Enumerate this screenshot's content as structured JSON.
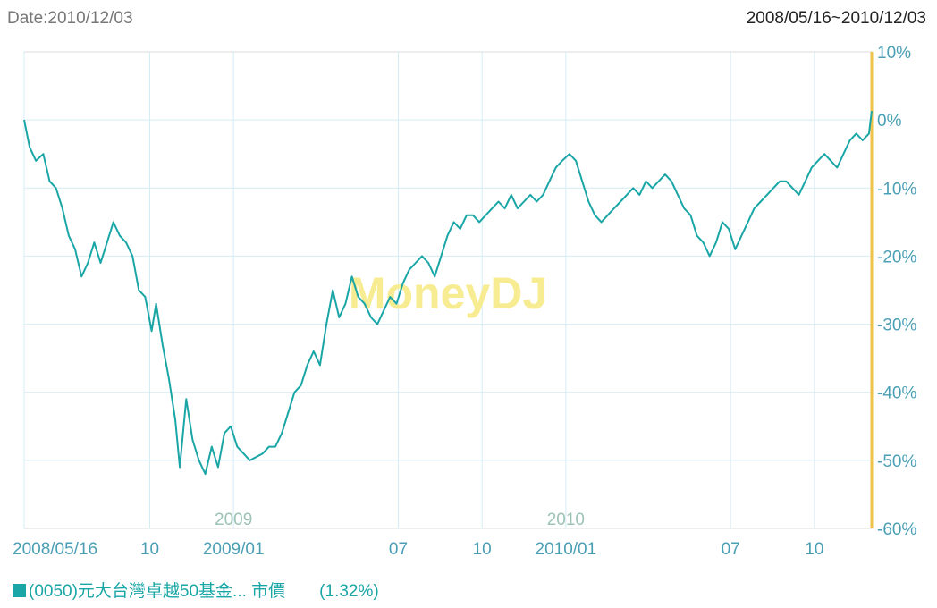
{
  "header": {
    "date_label": "Date:2010/12/03",
    "range_label": "2008/05/16~2010/12/03"
  },
  "watermark": "MoneyDJ",
  "legend": {
    "series_label": "(0050)元大台灣卓越50基金... 市價",
    "value_label": "(1.32%)"
  },
  "colors": {
    "line": "#1aa6a6",
    "axis_text": "#4b9fb5",
    "grid": "#d4ecf4",
    "year_label": "#9cc3b4",
    "watermark": "#f7ec92",
    "right_axis": "#f0c24a"
  },
  "chart_data": {
    "type": "line",
    "title": "",
    "ylabel": "",
    "ylim": [
      -60,
      10
    ],
    "y_ticks": [
      "10%",
      "0%",
      "-10%",
      "-20%",
      "-30%",
      "-40%",
      "-50%",
      "-60%"
    ],
    "x_range": [
      "2008/05/16",
      "2010/12/03"
    ],
    "x_ticks": [
      {
        "date": "2008/05/16",
        "label": "2008/05/16"
      },
      {
        "date": "2008/10/01",
        "label": "10"
      },
      {
        "date": "2009/01/01",
        "label": "2009/01"
      },
      {
        "date": "2009/07/01",
        "label": "07"
      },
      {
        "date": "2009/10/01",
        "label": "10"
      },
      {
        "date": "2010/01/01",
        "label": "2010/01"
      },
      {
        "date": "2010/07/01",
        "label": "07"
      },
      {
        "date": "2010/10/01",
        "label": "10"
      }
    ],
    "year_labels": [
      {
        "date": "2009/01/01",
        "label": "2009"
      },
      {
        "date": "2010/01/01",
        "label": "2010"
      }
    ],
    "grid": true,
    "series": [
      {
        "name": "(0050)元大台灣卓越50基金... 市價",
        "points": [
          [
            "2008/05/16",
            0
          ],
          [
            "2008/05/22",
            -4
          ],
          [
            "2008/05/29",
            -6
          ],
          [
            "2008/06/06",
            -5
          ],
          [
            "2008/06/13",
            -9
          ],
          [
            "2008/06/20",
            -10
          ],
          [
            "2008/06/27",
            -13
          ],
          [
            "2008/07/04",
            -17
          ],
          [
            "2008/07/11",
            -19
          ],
          [
            "2008/07/18",
            -23
          ],
          [
            "2008/07/25",
            -21
          ],
          [
            "2008/08/01",
            -18
          ],
          [
            "2008/08/08",
            -21
          ],
          [
            "2008/08/15",
            -18
          ],
          [
            "2008/08/22",
            -15
          ],
          [
            "2008/08/29",
            -17
          ],
          [
            "2008/09/05",
            -18
          ],
          [
            "2008/09/12",
            -20
          ],
          [
            "2008/09/19",
            -25
          ],
          [
            "2008/09/26",
            -26
          ],
          [
            "2008/10/03",
            -31
          ],
          [
            "2008/10/08",
            -27
          ],
          [
            "2008/10/15",
            -33
          ],
          [
            "2008/10/22",
            -38
          ],
          [
            "2008/10/29",
            -44
          ],
          [
            "2008/11/03",
            -51
          ],
          [
            "2008/11/10",
            -41
          ],
          [
            "2008/11/17",
            -47
          ],
          [
            "2008/11/24",
            -50
          ],
          [
            "2008/12/01",
            -52
          ],
          [
            "2008/12/08",
            -48
          ],
          [
            "2008/12/15",
            -51
          ],
          [
            "2008/12/22",
            -46
          ],
          [
            "2008/12/29",
            -45
          ],
          [
            "2009/01/05",
            -48
          ],
          [
            "2009/01/12",
            -49
          ],
          [
            "2009/01/19",
            -50
          ],
          [
            "2009/02/02",
            -49
          ],
          [
            "2009/02/09",
            -48
          ],
          [
            "2009/02/16",
            -48
          ],
          [
            "2009/02/23",
            -46
          ],
          [
            "2009/03/02",
            -43
          ],
          [
            "2009/03/09",
            -40
          ],
          [
            "2009/03/16",
            -39
          ],
          [
            "2009/03/23",
            -36
          ],
          [
            "2009/03/30",
            -34
          ],
          [
            "2009/04/06",
            -36
          ],
          [
            "2009/04/13",
            -30
          ],
          [
            "2009/04/20",
            -25
          ],
          [
            "2009/04/27",
            -29
          ],
          [
            "2009/05/04",
            -27
          ],
          [
            "2009/05/11",
            -23
          ],
          [
            "2009/05/18",
            -26
          ],
          [
            "2009/05/25",
            -27
          ],
          [
            "2009/06/01",
            -29
          ],
          [
            "2009/06/08",
            -30
          ],
          [
            "2009/06/15",
            -28
          ],
          [
            "2009/06/22",
            -26
          ],
          [
            "2009/06/29",
            -27
          ],
          [
            "2009/07/06",
            -24
          ],
          [
            "2009/07/13",
            -22
          ],
          [
            "2009/07/20",
            -21
          ],
          [
            "2009/07/27",
            -20
          ],
          [
            "2009/08/03",
            -21
          ],
          [
            "2009/08/10",
            -23
          ],
          [
            "2009/08/17",
            -20
          ],
          [
            "2009/08/24",
            -17
          ],
          [
            "2009/08/31",
            -15
          ],
          [
            "2009/09/07",
            -16
          ],
          [
            "2009/09/14",
            -14
          ],
          [
            "2009/09/21",
            -14
          ],
          [
            "2009/09/28",
            -15
          ],
          [
            "2009/10/05",
            -14
          ],
          [
            "2009/10/12",
            -13
          ],
          [
            "2009/10/19",
            -12
          ],
          [
            "2009/10/26",
            -13
          ],
          [
            "2009/11/02",
            -11
          ],
          [
            "2009/11/09",
            -13
          ],
          [
            "2009/11/16",
            -12
          ],
          [
            "2009/11/23",
            -11
          ],
          [
            "2009/11/30",
            -12
          ],
          [
            "2009/12/07",
            -11
          ],
          [
            "2009/12/14",
            -9
          ],
          [
            "2009/12/21",
            -7
          ],
          [
            "2009/12/28",
            -6
          ],
          [
            "2010/01/05",
            -5
          ],
          [
            "2010/01/12",
            -6
          ],
          [
            "2010/01/19",
            -9
          ],
          [
            "2010/01/26",
            -12
          ],
          [
            "2010/02/02",
            -14
          ],
          [
            "2010/02/09",
            -15
          ],
          [
            "2010/02/16",
            -14
          ],
          [
            "2010/02/23",
            -13
          ],
          [
            "2010/03/02",
            -12
          ],
          [
            "2010/03/09",
            -11
          ],
          [
            "2010/03/16",
            -10
          ],
          [
            "2010/03/23",
            -11
          ],
          [
            "2010/03/30",
            -9
          ],
          [
            "2010/04/06",
            -10
          ],
          [
            "2010/04/13",
            -9
          ],
          [
            "2010/04/20",
            -8
          ],
          [
            "2010/04/27",
            -9
          ],
          [
            "2010/05/04",
            -11
          ],
          [
            "2010/05/11",
            -13
          ],
          [
            "2010/05/18",
            -14
          ],
          [
            "2010/05/25",
            -17
          ],
          [
            "2010/06/01",
            -18
          ],
          [
            "2010/06/08",
            -20
          ],
          [
            "2010/06/15",
            -18
          ],
          [
            "2010/06/22",
            -15
          ],
          [
            "2010/06/29",
            -16
          ],
          [
            "2010/07/06",
            -19
          ],
          [
            "2010/07/13",
            -17
          ],
          [
            "2010/07/20",
            -15
          ],
          [
            "2010/07/27",
            -13
          ],
          [
            "2010/08/03",
            -12
          ],
          [
            "2010/08/10",
            -11
          ],
          [
            "2010/08/17",
            -10
          ],
          [
            "2010/08/24",
            -9
          ],
          [
            "2010/08/31",
            -9
          ],
          [
            "2010/09/07",
            -10
          ],
          [
            "2010/09/14",
            -11
          ],
          [
            "2010/09/21",
            -9
          ],
          [
            "2010/09/28",
            -7
          ],
          [
            "2010/10/05",
            -6
          ],
          [
            "2010/10/12",
            -5
          ],
          [
            "2010/10/19",
            -6
          ],
          [
            "2010/10/26",
            -7
          ],
          [
            "2010/11/02",
            -5
          ],
          [
            "2010/11/09",
            -3
          ],
          [
            "2010/11/16",
            -2
          ],
          [
            "2010/11/23",
            -3
          ],
          [
            "2010/11/30",
            -2
          ],
          [
            "2010/12/03",
            1.32
          ]
        ]
      }
    ]
  }
}
